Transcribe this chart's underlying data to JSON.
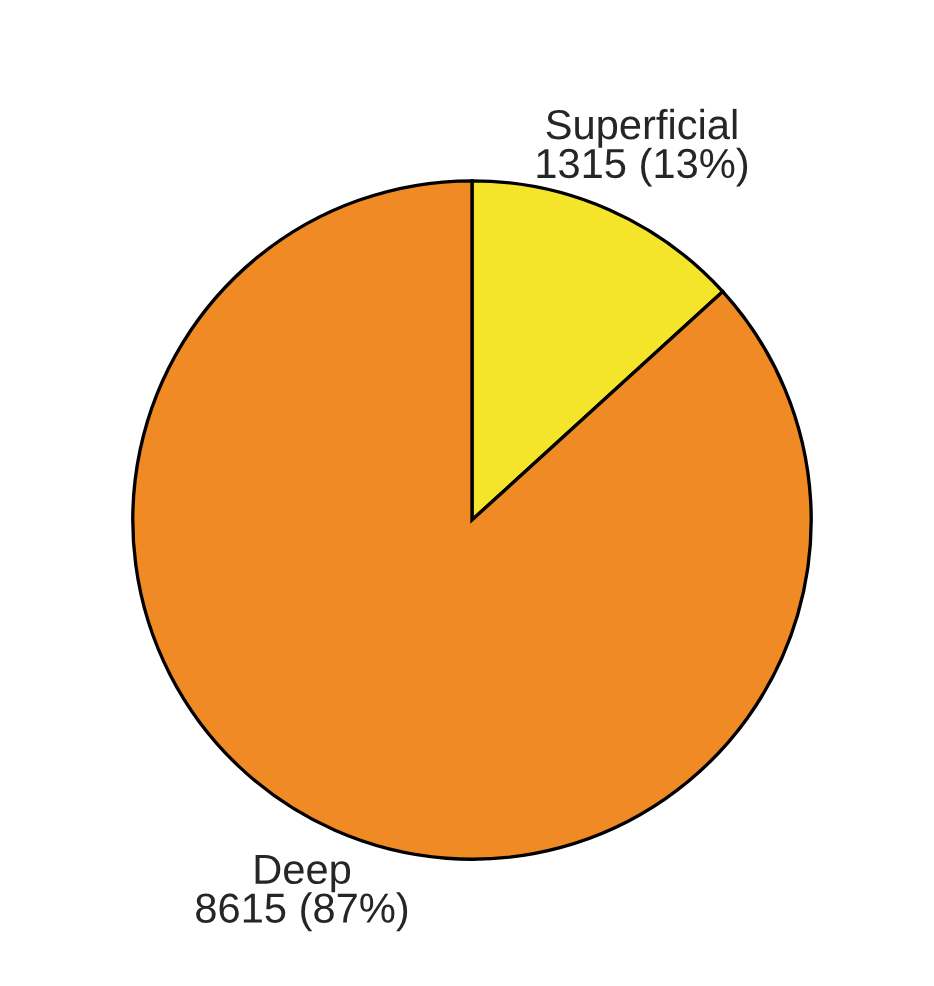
{
  "chart_data": {
    "type": "pie",
    "categories": [
      "Superficial",
      "Deep"
    ],
    "values": [
      1315,
      8615
    ],
    "value_labels": [
      "1315 (13%)",
      "8615 (87%)"
    ],
    "colors": [
      "#f5e52a",
      "#f08a24"
    ]
  }
}
